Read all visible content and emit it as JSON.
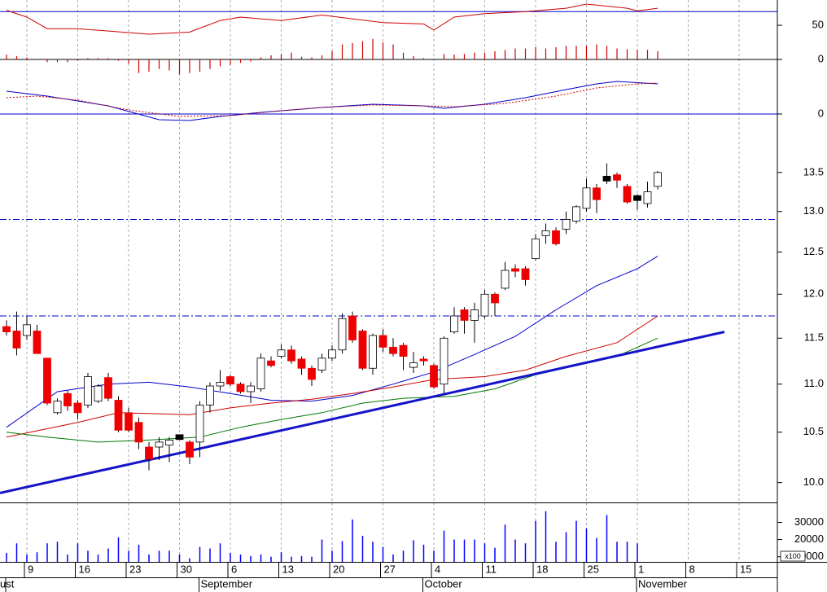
{
  "chart_data": [
    {
      "type": "line",
      "ylim": [
        0,
        87
      ],
      "yticks": [
        0,
        50
      ],
      "zero_line": true,
      "level": 70,
      "level_color": "#0000cc",
      "series": [
        {
          "color": "#d00000",
          "x": [
            0,
            2,
            4,
            7,
            14,
            18,
            21,
            23,
            27,
            31,
            37,
            41,
            42,
            44,
            47,
            51,
            55,
            57,
            61,
            62,
            64
          ],
          "values": [
            72,
            62,
            45,
            45,
            37,
            40,
            57,
            62,
            57,
            65,
            54,
            52,
            43,
            62,
            67,
            70,
            75,
            81,
            75,
            71,
            75
          ]
        }
      ],
      "histogram": {
        "color": "#d00000",
        "values": [
          7,
          5,
          3,
          0,
          -4,
          -4,
          -4,
          -2,
          2,
          2,
          2,
          -2,
          -6,
          -20,
          -18,
          -14,
          -16,
          -22,
          -20,
          -18,
          -14,
          -10,
          -8,
          -5,
          -3,
          3,
          6,
          8,
          10,
          4,
          3,
          6,
          12,
          22,
          24,
          27,
          30,
          25,
          22,
          10,
          5,
          2,
          0,
          8,
          7,
          8,
          10,
          10,
          12,
          14,
          16,
          16,
          18,
          16,
          18,
          20,
          20,
          20,
          22,
          20,
          16,
          15,
          14,
          14,
          12
        ]
      }
    },
    {
      "type": "line",
      "ylim": [
        -0.03,
        0.65
      ],
      "yticks": [
        0
      ],
      "zero_line": true,
      "zero_color": "#0000cc",
      "series": [
        {
          "color": "#0000cc",
          "x": [
            0,
            4,
            10,
            15,
            18,
            21,
            25,
            31,
            36,
            41,
            43,
            47,
            51,
            55,
            58,
            60,
            64
          ],
          "values": [
            0.28,
            0.22,
            0.1,
            -0.07,
            -0.08,
            -0.03,
            0.02,
            0.08,
            0.12,
            0.1,
            0.07,
            0.12,
            0.2,
            0.3,
            0.37,
            0.4,
            0.37
          ]
        },
        {
          "color": "#d00000",
          "style": "dotted",
          "x": [
            0,
            3,
            7,
            12,
            17,
            22,
            27,
            31,
            36,
            41,
            44,
            49,
            54,
            58,
            62,
            64
          ],
          "values": [
            0.2,
            0.22,
            0.17,
            0.05,
            -0.03,
            -0.02,
            0.04,
            0.08,
            0.11,
            0.1,
            0.09,
            0.13,
            0.22,
            0.32,
            0.37,
            0.38
          ]
        }
      ]
    },
    {
      "type": "candlestick",
      "log": true,
      "ylim": [
        9.81,
        14.23
      ],
      "yticks": [
        {
          "value": 10,
          "label": "10.0"
        },
        10.5,
        {
          "value": 11,
          "label": "11.0"
        },
        11.5,
        {
          "value": 12,
          "label": "12.0"
        },
        12.5,
        {
          "value": 13,
          "label": "13.0"
        },
        13.5
      ],
      "up_color": "#ffffff",
      "down_color": "#ee0000",
      "doji_color": "#000000",
      "open": [
        11.63,
        11.58,
        11.53,
        11.58,
        11.28,
        10.7,
        10.9,
        10.8,
        10.78,
        10.82,
        11.07,
        10.83,
        10.7,
        10.6,
        10.35,
        10.35,
        10.37,
        10.45,
        10.4,
        10.4,
        10.78,
        10.98,
        11.08,
        11.0,
        10.92,
        10.95,
        11.25,
        11.3,
        11.37,
        11.27,
        11.17,
        11.15,
        11.28,
        11.37,
        11.75,
        11.58,
        11.17,
        11.53,
        11.4,
        11.42,
        11.18,
        11.27,
        11.2,
        11.0,
        11.57,
        11.82,
        11.7,
        11.75,
        12.0,
        12.07,
        12.3,
        12.3,
        12.42,
        12.7,
        12.76,
        12.78,
        12.88,
        13.04,
        13.3,
        13.42,
        13.47,
        13.32,
        13.17,
        13.1,
        13.32
      ],
      "high": [
        11.7,
        11.8,
        11.75,
        11.65,
        11.28,
        10.85,
        10.93,
        10.83,
        11.12,
        11.0,
        11.12,
        10.87,
        10.75,
        10.65,
        10.4,
        10.45,
        10.45,
        10.47,
        10.42,
        10.82,
        11.02,
        11.15,
        11.1,
        11.02,
        11.02,
        11.33,
        11.3,
        11.43,
        11.42,
        11.3,
        11.2,
        11.33,
        11.42,
        11.78,
        11.8,
        11.6,
        11.55,
        11.6,
        11.5,
        11.45,
        11.35,
        11.3,
        11.22,
        11.52,
        11.85,
        11.85,
        11.9,
        12.05,
        12.02,
        12.38,
        12.35,
        12.33,
        12.72,
        12.85,
        12.8,
        13.0,
        13.08,
        13.42,
        13.35,
        13.62,
        13.5,
        13.35,
        13.22,
        13.38,
        13.52
      ],
      "low": [
        11.53,
        11.31,
        11.48,
        11.33,
        10.78,
        10.68,
        10.72,
        10.63,
        10.75,
        10.8,
        10.82,
        10.5,
        10.5,
        10.33,
        10.12,
        10.22,
        10.2,
        10.43,
        10.18,
        10.25,
        10.7,
        10.93,
        10.98,
        10.9,
        10.8,
        10.92,
        11.18,
        11.28,
        11.22,
        11.1,
        10.98,
        11.12,
        11.25,
        11.33,
        11.45,
        11.15,
        11.1,
        11.35,
        11.3,
        11.15,
        11.12,
        11.2,
        10.95,
        10.9,
        11.55,
        11.55,
        11.45,
        11.72,
        11.75,
        12.05,
        12.2,
        12.1,
        12.4,
        12.6,
        12.58,
        12.72,
        12.85,
        13.0,
        12.98,
        13.35,
        13.3,
        13.1,
        13.02,
        13.05,
        13.28
      ],
      "close": [
        11.57,
        11.39,
        11.65,
        11.33,
        10.8,
        10.82,
        10.77,
        10.7,
        11.08,
        10.98,
        10.85,
        10.52,
        10.52,
        10.4,
        10.23,
        10.4,
        10.42,
        10.45,
        10.25,
        10.78,
        10.98,
        11.02,
        11.0,
        10.92,
        10.98,
        11.28,
        11.2,
        11.37,
        11.25,
        11.17,
        11.05,
        11.28,
        11.37,
        11.72,
        11.48,
        11.17,
        11.53,
        11.4,
        11.33,
        11.3,
        11.23,
        11.25,
        10.97,
        11.5,
        11.75,
        11.7,
        11.82,
        12.0,
        11.9,
        12.28,
        12.27,
        12.17,
        12.66,
        12.76,
        12.6,
        12.9,
        13.06,
        13.3,
        13.15,
        13.42,
        13.4,
        13.12,
        13.17,
        13.25,
        13.5
      ],
      "series": [
        {
          "color": "#0000cc",
          "x": [
            0,
            5,
            10,
            14,
            18,
            22,
            26,
            30,
            34,
            38,
            42,
            46,
            50,
            54,
            58,
            62,
            64
          ],
          "values": [
            10.55,
            10.92,
            11.0,
            11.02,
            10.97,
            10.9,
            10.83,
            10.82,
            10.88,
            11.0,
            11.13,
            11.32,
            11.52,
            11.82,
            12.1,
            12.3,
            12.45
          ]
        },
        {
          "color": "#cc0000",
          "x": [
            0,
            7,
            11,
            18,
            22,
            26,
            30,
            34,
            38,
            42,
            47,
            51,
            55,
            60,
            64
          ],
          "values": [
            10.45,
            10.6,
            10.7,
            10.68,
            10.75,
            10.8,
            10.84,
            10.9,
            10.97,
            11.05,
            11.08,
            11.15,
            11.3,
            11.45,
            11.75
          ]
        },
        {
          "color": "#007700",
          "x": [
            0,
            4,
            9,
            14,
            19,
            23,
            27,
            31,
            35,
            39,
            44,
            48,
            52,
            56,
            60,
            64
          ],
          "values": [
            10.5,
            10.45,
            10.4,
            10.42,
            10.45,
            10.55,
            10.63,
            10.7,
            10.8,
            10.85,
            10.87,
            10.95,
            11.1,
            11.2,
            11.3,
            11.5
          ]
        }
      ],
      "levels": [
        12.9,
        11.75
      ],
      "level_color": "#0000cc",
      "trend_line": {
        "color": "#1414c8",
        "x": [
          -0.64,
          70.56
        ],
        "values": [
          9.9,
          11.57
        ]
      }
    },
    {
      "type": "bar",
      "ylim": [
        7000,
        38300
      ],
      "yticks": [
        10000,
        20000,
        30000
      ],
      "color": "#0000ff",
      "unit_label": "x100",
      "categories": [
        null,
        null,
        "9",
        null,
        null,
        null,
        null,
        "16",
        null,
        null,
        null,
        null,
        "23",
        null,
        null,
        null,
        null,
        "30",
        null,
        null,
        null,
        null,
        "6",
        null,
        null,
        null,
        null,
        "13",
        null,
        null,
        null,
        null,
        "20",
        null,
        null,
        null,
        null,
        "27",
        null,
        null,
        null,
        null,
        "4",
        null,
        null,
        null,
        null,
        "11",
        null,
        null,
        null,
        null,
        "18",
        null,
        null,
        null,
        null,
        "25",
        null,
        null,
        null,
        null,
        "1",
        null,
        null,
        null,
        null,
        "8",
        null,
        null,
        null,
        null,
        "15",
        null,
        null,
        null
      ],
      "months": [
        "ust",
        null,
        null,
        null,
        null,
        null,
        null,
        null,
        null,
        null,
        null,
        null,
        null,
        null,
        null,
        null,
        null,
        null,
        null,
        "September",
        null,
        null,
        null,
        null,
        null,
        null,
        null,
        null,
        null,
        null,
        null,
        null,
        null,
        null,
        null,
        null,
        null,
        null,
        null,
        null,
        null,
        "October",
        null,
        null,
        null,
        null,
        null,
        null,
        null,
        null,
        null,
        null,
        null,
        null,
        null,
        null,
        null,
        null,
        null,
        null,
        null,
        null,
        "November",
        null,
        null,
        null,
        null,
        null,
        null,
        null,
        null,
        null,
        null,
        null,
        null,
        null
      ],
      "values": [
        12200,
        17800,
        11300,
        12600,
        17800,
        18700,
        11300,
        17800,
        13500,
        11300,
        14800,
        21300,
        13500,
        17000,
        11300,
        13500,
        13500,
        11300,
        9100,
        15700,
        14800,
        17800,
        12200,
        11300,
        10400,
        11300,
        10000,
        12600,
        10000,
        10400,
        10000,
        20000,
        13500,
        19100,
        31700,
        22200,
        18700,
        15700,
        11300,
        13500,
        19600,
        17000,
        13500,
        25200,
        20000,
        20000,
        20000,
        17800,
        15200,
        28700,
        20000,
        17800,
        30900,
        36500,
        18700,
        24300,
        30900,
        26500,
        20900,
        34300,
        18700,
        18700,
        17800,
        null,
        null,
        null,
        null,
        null,
        null,
        null,
        null,
        null,
        null,
        null,
        null,
        null
      ]
    }
  ]
}
